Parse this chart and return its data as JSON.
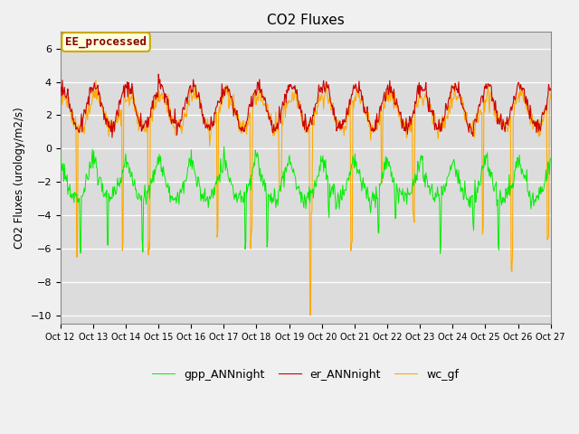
{
  "title": "CO2 Fluxes",
  "ylabel": "CO2 Fluxes (urology/m2/s)",
  "ylim": [
    -10.5,
    7
  ],
  "yticks": [
    -10,
    -8,
    -6,
    -4,
    -2,
    0,
    2,
    4,
    6
  ],
  "bg_color": "#dcdcdc",
  "fig_color": "#f0f0f0",
  "line_colors": {
    "gpp": "#00ee00",
    "er": "#cc0000",
    "wc": "#ffaa00"
  },
  "legend_labels": [
    "gpp_ANNnight",
    "er_ANNnight",
    "wc_gf"
  ],
  "annotation_text": "EE_processed",
  "annotation_color": "#880000",
  "annotation_bg": "#ffffe0",
  "annotation_edge": "#ccaa00",
  "xtick_labels": [
    "Oct 12",
    "Oct 13",
    "Oct 14",
    "Oct 15",
    "Oct 16",
    "Oct 17",
    "Oct 18",
    "Oct 19",
    "Oct 20",
    "Oct 21",
    "Oct 22",
    "Oct 23",
    "Oct 24",
    "Oct 25",
    "Oct 26",
    "Oct 27"
  ],
  "n_days": 15,
  "n_points": 720,
  "grid_color": "#c8c8c8",
  "title_fontsize": 11
}
